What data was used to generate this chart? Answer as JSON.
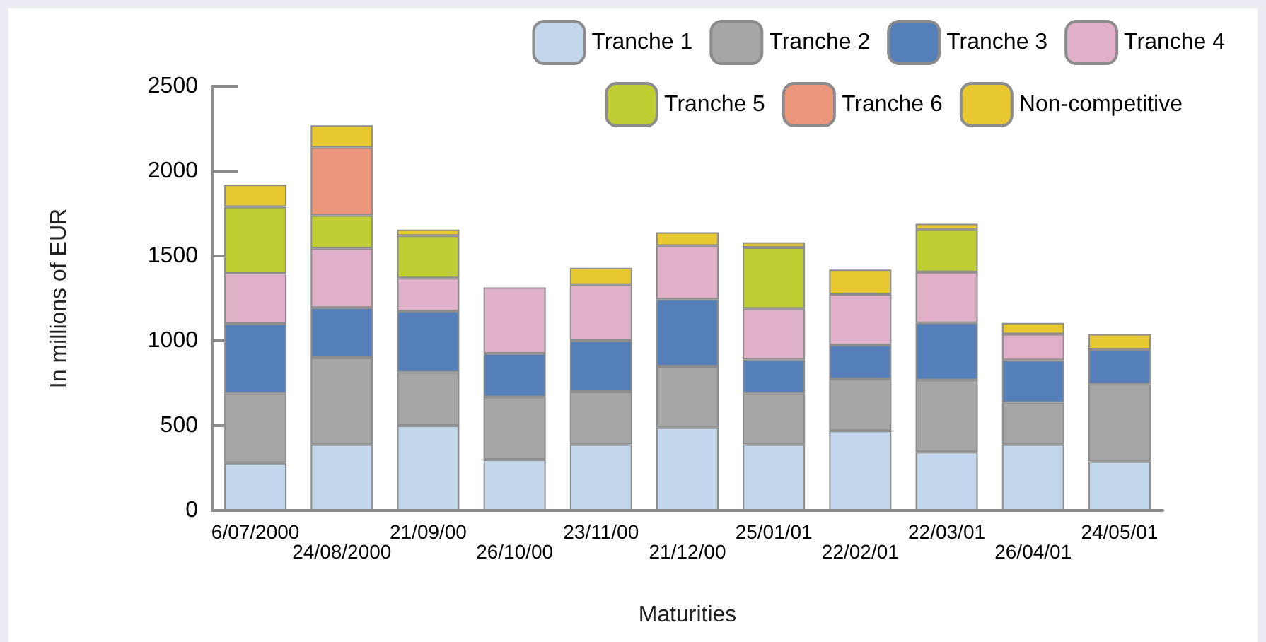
{
  "chart_data": {
    "type": "bar",
    "stacked": true,
    "xlabel": "Maturities",
    "ylabel": "In millions of EUR",
    "categories": [
      "6/07/2000",
      "24/08/2000",
      "21/09/00",
      "26/10/00",
      "23/11/00",
      "21/12/00",
      "25/01/01",
      "22/02/01",
      "22/03/01",
      "26/04/01",
      "24/05/01"
    ],
    "series": [
      {
        "name": "Tranche 1",
        "color": "#c2d6ec",
        "values": [
          280,
          390,
          500,
          300,
          390,
          490,
          390,
          470,
          345,
          390,
          290
        ]
      },
      {
        "name": "Tranche 2",
        "color": "#a6a6a6",
        "values": [
          410,
          510,
          315,
          370,
          310,
          360,
          300,
          305,
          425,
          245,
          455
        ]
      },
      {
        "name": "Tranche 3",
        "color": "#557fb8",
        "values": [
          410,
          295,
          360,
          255,
          300,
          395,
          200,
          200,
          335,
          250,
          205
        ]
      },
      {
        "name": "Tranche 4",
        "color": "#e0b0c8",
        "values": [
          300,
          350,
          195,
          390,
          330,
          315,
          300,
          300,
          300,
          155,
          null
        ]
      },
      {
        "name": "Tranche 5",
        "color": "#bfce33",
        "values": [
          390,
          195,
          250,
          null,
          null,
          null,
          360,
          null,
          250,
          null,
          null
        ]
      },
      {
        "name": "Tranche 6",
        "color": "#e9967a",
        "values": [
          null,
          400,
          null,
          null,
          null,
          null,
          null,
          null,
          null,
          null,
          null
        ]
      },
      {
        "name": "Non-competitive",
        "color": "#e8c830",
        "values": [
          130,
          130,
          35,
          null,
          100,
          80,
          30,
          145,
          35,
          65,
          90
        ]
      }
    ],
    "ylim": [
      0,
      2500
    ],
    "yticks": [
      0,
      500,
      1000,
      1500,
      2000,
      2500
    ],
    "grid": false,
    "legend": "top right"
  }
}
